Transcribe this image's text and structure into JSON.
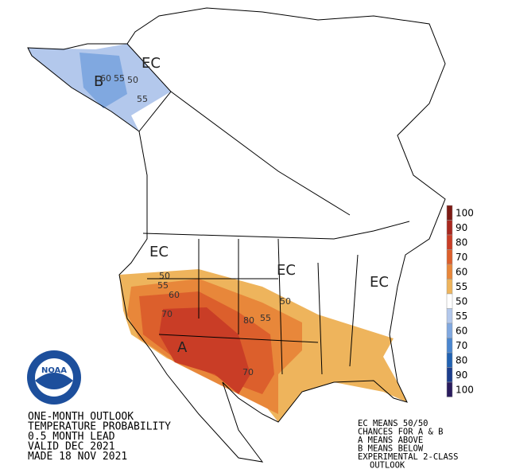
{
  "map": {
    "labels": [
      "EC",
      "B",
      "60",
      "55",
      "50",
      "55",
      "EC",
      "EC",
      "EC",
      "50",
      "55",
      "60",
      "70",
      "A",
      "80",
      "55",
      "50",
      "70"
    ]
  },
  "legend": {
    "entries": [
      {
        "value": 100,
        "color": "#7d1a14"
      },
      {
        "value": 90,
        "color": "#a8281f"
      },
      {
        "value": 80,
        "color": "#c93d26"
      },
      {
        "value": 70,
        "color": "#dc5f2c"
      },
      {
        "value": 60,
        "color": "#e8873a"
      },
      {
        "value": 55,
        "color": "#eeb45c"
      },
      {
        "value": 50,
        "color": "#ffffff"
      },
      {
        "value": 55,
        "color": "#b3c8ec"
      },
      {
        "value": 60,
        "color": "#80a8e0"
      },
      {
        "value": 70,
        "color": "#4a86cf"
      },
      {
        "value": 80,
        "color": "#2262b2"
      },
      {
        "value": 90,
        "color": "#1c3d8c"
      },
      {
        "value": 100,
        "color": "#2a1c5e"
      }
    ]
  },
  "caption": {
    "lines": [
      "ONE-MONTH OUTLOOK",
      "TEMPERATURE PROBABILITY",
      "0.5 MONTH LEAD",
      "VALID DEC 2021",
      "MADE 18 NOV 2021"
    ]
  },
  "notes": {
    "lines": [
      "EC MEANS 50/50",
      "CHANCES FOR A & B",
      "A MEANS ABOVE",
      "B MEANS BELOW",
      "EXPERIMENTAL 2-CLASS",
      "OUTLOOK"
    ]
  },
  "logo": {
    "text": "NOAA"
  }
}
